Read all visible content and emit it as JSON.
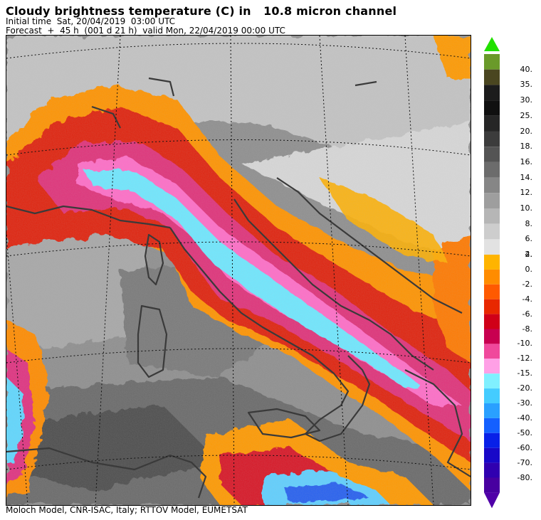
{
  "header": {
    "title": "Cloudy brightness temperature (C) in   10.8 micron channel",
    "initial_time": "Initial time  Sat, 20/04/2019  03:00 UTC",
    "forecast": "Forecast  +  45 h  (001 d 21 h)  valid Mon, 22/04/2019 00:00 UTC"
  },
  "footer": {
    "credit": "Moloch Model, CNR-ISAC, Italy; RTTOV Model, EUMETSAT"
  },
  "colorbar": {
    "upper_labels": [
      "40.",
      "35.",
      "30.",
      "25.",
      "20.",
      "18.",
      "16.",
      "14.",
      "12.",
      "10.",
      "8.",
      "6.",
      "4."
    ],
    "upper_colors": [
      "#6a9a2a",
      "#4a4620",
      "#1c1c1c",
      "#101010",
      "#262626",
      "#3c3c3c",
      "#545454",
      "#6c6c6c",
      "#868686",
      "#9e9e9e",
      "#b6b6b6",
      "#cdcdcd",
      "#e2e2e2"
    ],
    "top_arrow_color": "#22e000",
    "lower_labels": [
      "2.",
      "0.",
      "-2.",
      "-4.",
      "-6.",
      "-8.",
      "-10.",
      "-12.",
      "-15.",
      "-20.",
      "-30.",
      "-40.",
      "-50.",
      "-60.",
      "-70.",
      "-80."
    ],
    "lower_colors": [
      "#ffb400",
      "#ff8c00",
      "#ff5a00",
      "#e82800",
      "#d00018",
      "#c80050",
      "#f0489c",
      "#ffa0e6",
      "#80f0ff",
      "#44ccff",
      "#2aa0ff",
      "#1460ff",
      "#0820e8",
      "#1808c8",
      "#3000b0",
      "#4800a0"
    ],
    "bottom_arrow_color": "#5000a8"
  }
}
